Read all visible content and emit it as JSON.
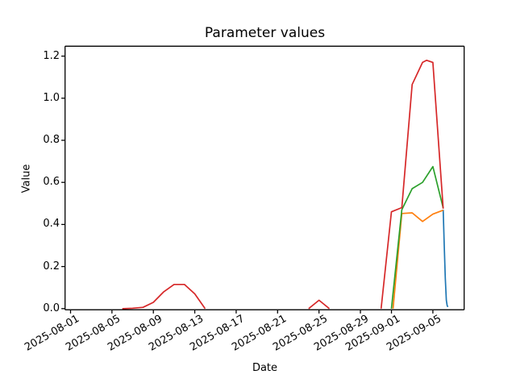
{
  "chart_data": {
    "type": "line",
    "title": "Parameter values",
    "xlabel": "Date",
    "ylabel": "Value",
    "x_unit": "days since 2025-08-01",
    "xlim_days": [
      -0.5,
      38.1
    ],
    "ylim": [
      0,
      1.24
    ],
    "grid": false,
    "legend": false,
    "x_ticks": [
      {
        "d": 0,
        "label": "2025-08-01"
      },
      {
        "d": 4,
        "label": "2025-08-05"
      },
      {
        "d": 8,
        "label": "2025-08-09"
      },
      {
        "d": 12,
        "label": "2025-08-13"
      },
      {
        "d": 16,
        "label": "2025-08-17"
      },
      {
        "d": 20,
        "label": "2025-08-21"
      },
      {
        "d": 24,
        "label": "2025-08-25"
      },
      {
        "d": 28,
        "label": "2025-08-29"
      },
      {
        "d": 31,
        "label": "2025-09-01"
      },
      {
        "d": 35,
        "label": "2025-09-05"
      }
    ],
    "y_ticks": [
      {
        "v": 0.0,
        "label": "0.0"
      },
      {
        "v": 0.2,
        "label": "0.2"
      },
      {
        "v": 0.4,
        "label": "0.4"
      },
      {
        "v": 0.6,
        "label": "0.6"
      },
      {
        "v": 0.8,
        "label": "0.8"
      },
      {
        "v": 1.0,
        "label": "1.0"
      },
      {
        "v": 1.2,
        "label": "1.2"
      }
    ],
    "series": [
      {
        "name": "blue-line",
        "color": "#1f77b4",
        "segments": [
          [
            [
              36,
              0.47
            ],
            [
              36.1,
              0.3
            ],
            [
              36.2,
              0.145
            ],
            [
              36.3,
              0.04
            ],
            [
              36.38,
              0.015
            ],
            [
              36.45,
              0.008
            ]
          ]
        ]
      },
      {
        "name": "orange-line",
        "color": "#ff7f0e",
        "segments": [
          [
            [
              31.15,
              0.0
            ],
            [
              32,
              0.452
            ],
            [
              33,
              0.455
            ],
            [
              34,
              0.414
            ],
            [
              35,
              0.449
            ],
            [
              36,
              0.468
            ]
          ]
        ]
      },
      {
        "name": "green-line",
        "color": "#2ca02c",
        "segments": [
          [
            [
              31,
              0.0
            ],
            [
              32,
              0.47
            ],
            [
              33,
              0.57
            ],
            [
              34,
              0.6
            ],
            [
              35,
              0.675
            ],
            [
              36,
              0.478
            ]
          ]
        ]
      },
      {
        "name": "red-line",
        "color": "#d62728",
        "segments": [
          [
            [
              5,
              0.0
            ],
            [
              6,
              0.002
            ],
            [
              7,
              0.006
            ],
            [
              8,
              0.03
            ],
            [
              9,
              0.08
            ],
            [
              10,
              0.115
            ],
            [
              11,
              0.115
            ],
            [
              12,
              0.07
            ],
            [
              13,
              0.0
            ]
          ],
          [
            [
              23,
              0.0
            ],
            [
              24,
              0.04
            ],
            [
              25,
              0.0
            ]
          ],
          [
            [
              30,
              0.0
            ],
            [
              31,
              0.46
            ],
            [
              32,
              0.48
            ],
            [
              33,
              1.065
            ],
            [
              34,
              1.17
            ],
            [
              34.4,
              1.18
            ],
            [
              35,
              1.17
            ],
            [
              36,
              0.475
            ]
          ]
        ]
      }
    ]
  }
}
